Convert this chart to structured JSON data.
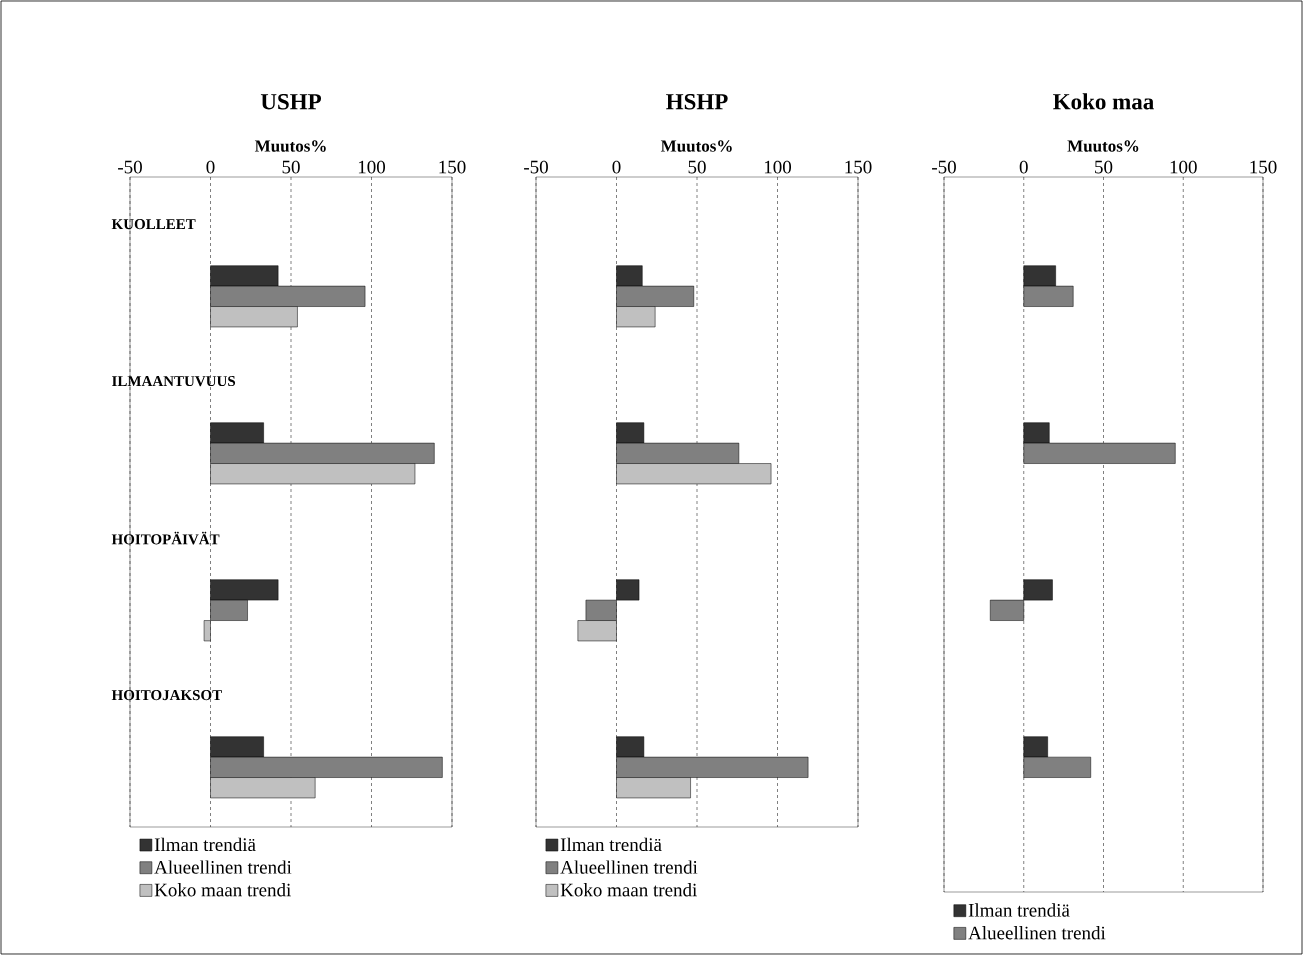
{
  "chart_data": [
    {
      "type": "bar",
      "orientation": "horizontal",
      "title": "USHP",
      "xlabel": "Muutos%",
      "categories": [
        "KUOLLEET",
        "ILMAANTUVUUS",
        "HOITOPÄIVÄT",
        "HOITOJAKSOT"
      ],
      "xlim": [
        -50,
        150
      ],
      "xticks": [
        -50,
        0,
        50,
        100,
        150
      ],
      "grid": "x",
      "legend": "bottom",
      "series": [
        {
          "name": "Ilman trendiä",
          "color": "#333333",
          "values": [
            42,
            33,
            42,
            33
          ]
        },
        {
          "name": "Alueellinen trendi",
          "color": "#808080",
          "values": [
            96,
            139,
            23,
            144
          ]
        },
        {
          "name": "Koko maan trendi",
          "color": "#c0c0c0",
          "values": [
            54,
            127,
            -4,
            65
          ]
        }
      ]
    },
    {
      "type": "bar",
      "orientation": "horizontal",
      "title": "HSHP",
      "xlabel": "Muutos%",
      "categories": [
        null,
        null,
        null,
        null
      ],
      "tick_labels": "x",
      "xlim": [
        -50,
        150
      ],
      "xticks": [
        -50,
        0,
        50,
        100,
        150
      ],
      "grid": "x",
      "legend": "bottom",
      "series": [
        {
          "name": "Ilman trendiä",
          "color": "#333333",
          "values": [
            16,
            17,
            14,
            17
          ]
        },
        {
          "name": "Alueellinen trendi",
          "color": "#808080",
          "values": [
            48,
            76,
            -19,
            119
          ]
        },
        {
          "name": "Koko maan trendi",
          "color": "#c0c0c0",
          "values": [
            24,
            96,
            -24,
            46
          ]
        }
      ]
    },
    {
      "type": "bar",
      "orientation": "horizontal",
      "title": "Koko maa",
      "xlabel": "Muutos%",
      "categories": [
        null,
        null,
        null,
        null
      ],
      "tick_labels": "x",
      "xlim": [
        -50,
        150
      ],
      "xticks": [
        -50,
        0,
        50,
        100,
        150
      ],
      "grid": "x",
      "legend": "bottom",
      "series": [
        {
          "name": "Ilman trendiä",
          "color": "#333333",
          "values": [
            20,
            16,
            18,
            15
          ]
        },
        {
          "name": "Alueellinen trendi",
          "color": "#808080",
          "values": [
            31,
            95,
            -21,
            42
          ]
        }
      ]
    }
  ]
}
